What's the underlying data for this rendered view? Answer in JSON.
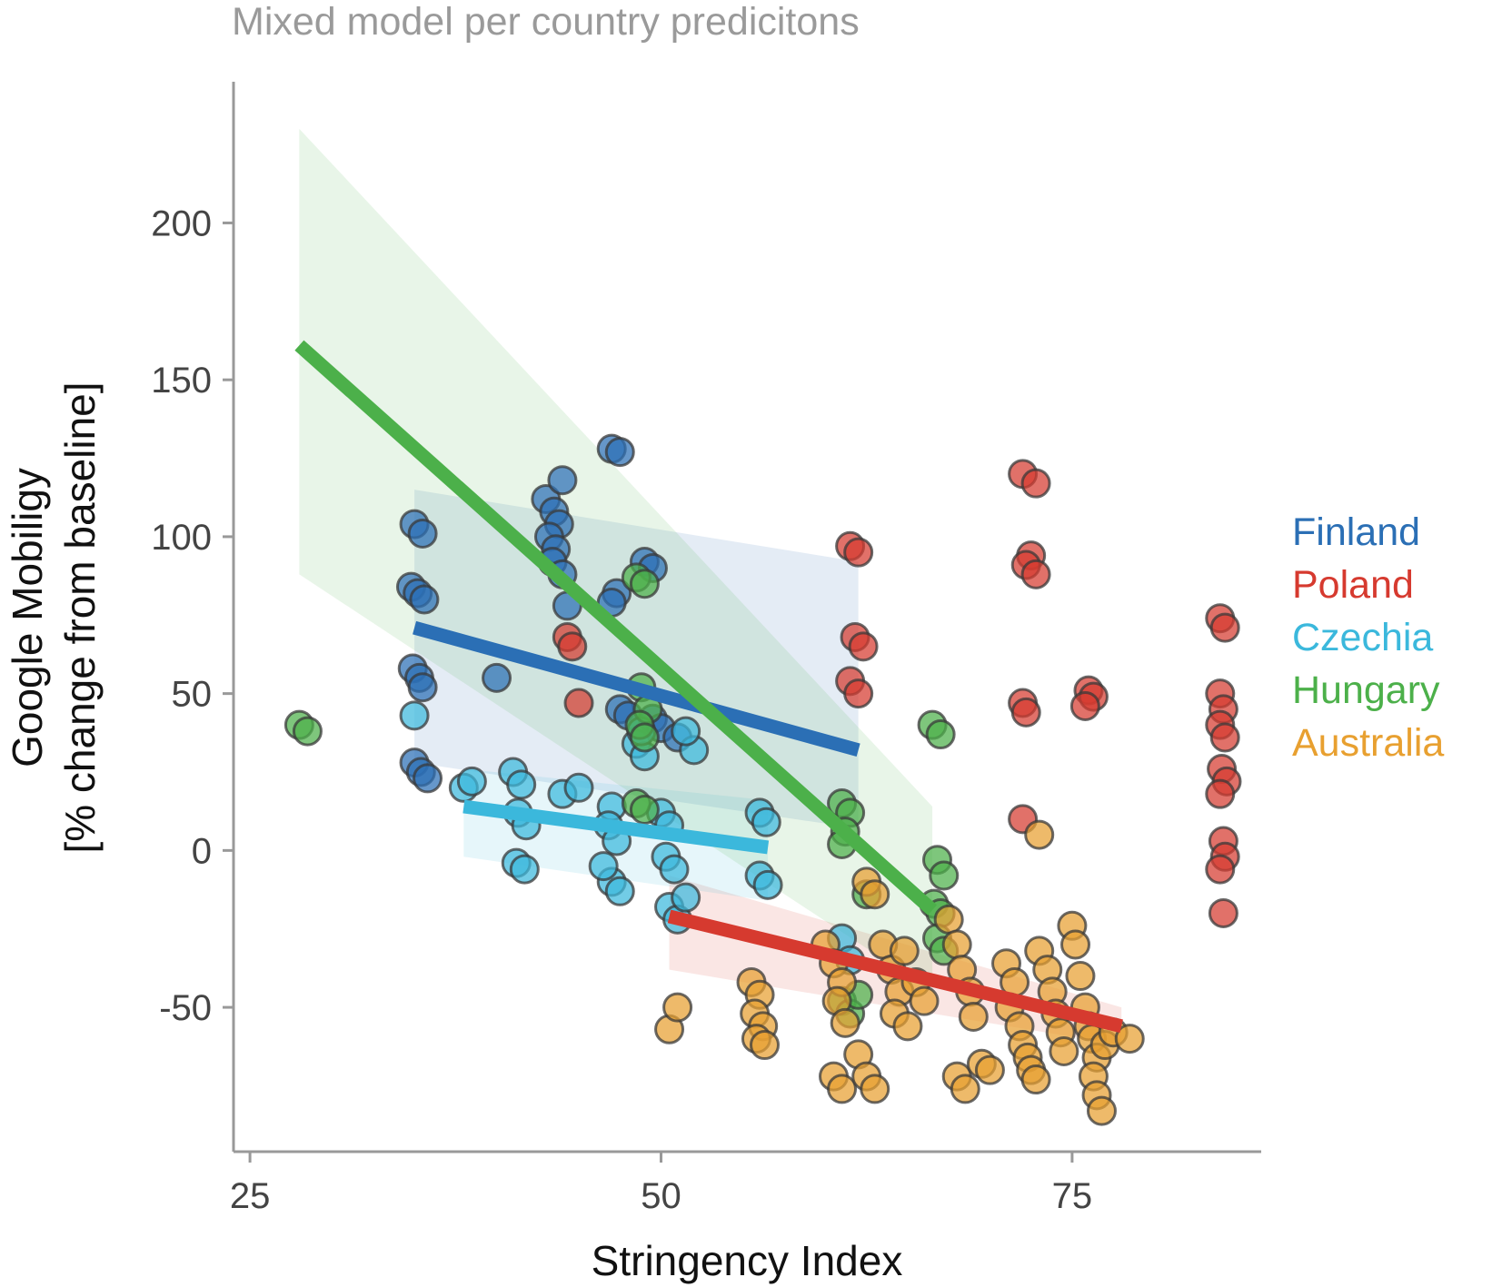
{
  "chart_data": {
    "type": "scatter",
    "title": "Mixed model per country predicitons",
    "xlabel": "Stringency Index",
    "ylabel_line1": "Google Mobiligy",
    "ylabel_line2": "[% change from baseline]",
    "xlim": [
      24,
      86.5
    ],
    "ylim": [
      -96,
      245
    ],
    "xticks": [
      25,
      50,
      75
    ],
    "xtick_labels": [
      "25",
      "50",
      "75"
    ],
    "yticks": [
      -50,
      0,
      50,
      100,
      150,
      200
    ],
    "ytick_labels": [
      "-50",
      "0",
      "50",
      "100",
      "150",
      "200"
    ],
    "grid": false,
    "legend_position": "right",
    "series": [
      {
        "name": "Finland",
        "color": "#2b6fb5",
        "fit_line": {
          "x": [
            35,
            62
          ],
          "y": [
            71,
            32
          ]
        },
        "band": {
          "x": [
            35,
            62
          ],
          "upper": [
            115,
            92
          ],
          "lower": [
            28,
            7
          ]
        },
        "points": [
          [
            35,
            104
          ],
          [
            35.5,
            101
          ],
          [
            34.8,
            84
          ],
          [
            35.2,
            82
          ],
          [
            35.6,
            80
          ],
          [
            34.9,
            58
          ],
          [
            35.3,
            55
          ],
          [
            35.5,
            52
          ],
          [
            35,
            28
          ],
          [
            35.4,
            25
          ],
          [
            35.8,
            23
          ],
          [
            43,
            112
          ],
          [
            43.5,
            108
          ],
          [
            43.8,
            104
          ],
          [
            43.2,
            100
          ],
          [
            43.6,
            96
          ],
          [
            43.4,
            92
          ],
          [
            44,
            88
          ],
          [
            44,
            118
          ],
          [
            44.3,
            78
          ],
          [
            40,
            55
          ],
          [
            47,
            128
          ],
          [
            47.5,
            127
          ],
          [
            47.3,
            82
          ],
          [
            47,
            79
          ],
          [
            49,
            92
          ],
          [
            49.5,
            90
          ],
          [
            47.5,
            45
          ],
          [
            48,
            43
          ],
          [
            49.5,
            42
          ],
          [
            50,
            39
          ],
          [
            51,
            36
          ]
        ]
      },
      {
        "name": "Poland",
        "color": "#d63a2f",
        "fit_line": {
          "x": [
            50.5,
            78
          ],
          "y": [
            -21,
            -56
          ]
        },
        "band": {
          "x": [
            50.5,
            78
          ],
          "upper": [
            -8,
            -50
          ],
          "lower": [
            -38,
            -62
          ]
        },
        "points": [
          [
            61.5,
            97
          ],
          [
            62,
            95
          ],
          [
            61.8,
            68
          ],
          [
            62.3,
            65
          ],
          [
            61.5,
            54
          ],
          [
            62,
            50
          ],
          [
            72,
            120
          ],
          [
            72.8,
            117
          ],
          [
            72.5,
            94
          ],
          [
            72.2,
            91
          ],
          [
            72.8,
            88
          ],
          [
            72,
            47
          ],
          [
            72.2,
            44
          ],
          [
            76,
            51
          ],
          [
            76.3,
            49
          ],
          [
            75.8,
            46
          ],
          [
            84,
            74
          ],
          [
            84.3,
            71
          ],
          [
            84,
            50
          ],
          [
            84.2,
            45
          ],
          [
            84,
            40
          ],
          [
            84.3,
            36
          ],
          [
            84.1,
            26
          ],
          [
            84.4,
            22
          ],
          [
            84,
            18
          ],
          [
            84.2,
            3
          ],
          [
            84.3,
            -2
          ],
          [
            84,
            -6
          ],
          [
            84.2,
            -20
          ],
          [
            72,
            10
          ],
          [
            44.3,
            68
          ],
          [
            44.6,
            65
          ],
          [
            45,
            47
          ]
        ]
      },
      {
        "name": "Czechia",
        "color": "#3bb8dc",
        "fit_line": {
          "x": [
            38,
            56.5
          ],
          "y": [
            14,
            1
          ]
        },
        "band": {
          "x": [
            38,
            56.5
          ],
          "upper": [
            26,
            16
          ],
          "lower": [
            -2,
            -16
          ]
        },
        "points": [
          [
            35,
            43
          ],
          [
            38,
            20
          ],
          [
            38.5,
            22
          ],
          [
            41,
            25
          ],
          [
            41.5,
            21
          ],
          [
            41.3,
            12
          ],
          [
            41.8,
            8
          ],
          [
            41.2,
            -4
          ],
          [
            41.7,
            -6
          ],
          [
            44,
            18
          ],
          [
            45,
            20
          ],
          [
            47,
            14
          ],
          [
            46.8,
            8
          ],
          [
            47.3,
            3
          ],
          [
            47,
            -10
          ],
          [
            47.5,
            -13
          ],
          [
            46.5,
            -5
          ],
          [
            48.5,
            34
          ],
          [
            49,
            30
          ],
          [
            48.8,
            38
          ],
          [
            50,
            12
          ],
          [
            50.5,
            8
          ],
          [
            50.3,
            -2
          ],
          [
            50.8,
            -6
          ],
          [
            50.5,
            -18
          ],
          [
            51,
            -22
          ],
          [
            51.5,
            -15
          ],
          [
            56,
            12
          ],
          [
            56.4,
            9
          ],
          [
            56,
            -8
          ],
          [
            56.5,
            -11
          ],
          [
            61,
            -28
          ],
          [
            61.5,
            -35
          ],
          [
            52,
            32
          ],
          [
            51.5,
            38
          ]
        ]
      },
      {
        "name": "Hungary",
        "color": "#4cb04a",
        "fit_line": {
          "x": [
            28,
            66.5
          ],
          "y": [
            161,
            -19
          ]
        },
        "band": {
          "x": [
            28,
            66.5
          ],
          "upper": [
            230,
            14
          ],
          "lower": [
            88,
            -45
          ]
        },
        "points": [
          [
            28,
            40
          ],
          [
            28.5,
            38
          ],
          [
            48.5,
            87
          ],
          [
            49,
            85
          ],
          [
            48.8,
            52
          ],
          [
            49.2,
            45
          ],
          [
            48.7,
            40
          ],
          [
            49,
            36
          ],
          [
            48.5,
            15
          ],
          [
            49,
            13
          ],
          [
            61,
            15
          ],
          [
            61.5,
            12
          ],
          [
            61.2,
            6
          ],
          [
            61,
            2
          ],
          [
            66.5,
            40
          ],
          [
            67,
            37
          ],
          [
            66.8,
            -3
          ],
          [
            67.2,
            -8
          ],
          [
            66.6,
            -17
          ],
          [
            67,
            -20
          ],
          [
            66.8,
            -28
          ],
          [
            67.2,
            -32
          ],
          [
            61,
            -48
          ],
          [
            61.5,
            -52
          ],
          [
            62,
            -46
          ],
          [
            62.5,
            -14
          ]
        ]
      },
      {
        "name": "Australia",
        "color": "#e8a030",
        "fit_line": null,
        "band": null,
        "points": [
          [
            50.5,
            -57
          ],
          [
            51,
            -50
          ],
          [
            55.5,
            -42
          ],
          [
            56,
            -46
          ],
          [
            55.7,
            -52
          ],
          [
            56.2,
            -56
          ],
          [
            55.8,
            -60
          ],
          [
            56.3,
            -62
          ],
          [
            60,
            -30
          ],
          [
            60.5,
            -36
          ],
          [
            61,
            -42
          ],
          [
            60.7,
            -48
          ],
          [
            61.2,
            -55
          ],
          [
            60.5,
            -72
          ],
          [
            61,
            -76
          ],
          [
            62,
            -65
          ],
          [
            62.5,
            -72
          ],
          [
            63,
            -76
          ],
          [
            63.5,
            -30
          ],
          [
            64,
            -38
          ],
          [
            64.5,
            -45
          ],
          [
            64.2,
            -52
          ],
          [
            65,
            -56
          ],
          [
            64.8,
            -32
          ],
          [
            65.5,
            -42
          ],
          [
            66,
            -48
          ],
          [
            62.5,
            -10
          ],
          [
            63,
            -14
          ],
          [
            67.5,
            -22
          ],
          [
            68,
            -30
          ],
          [
            68.3,
            -38
          ],
          [
            68.8,
            -45
          ],
          [
            69,
            -53
          ],
          [
            68,
            -72
          ],
          [
            68.5,
            -76
          ],
          [
            69.5,
            -68
          ],
          [
            70,
            -70
          ],
          [
            71,
            -36
          ],
          [
            71.5,
            -42
          ],
          [
            71.2,
            -50
          ],
          [
            71.8,
            -56
          ],
          [
            72,
            -62
          ],
          [
            72.3,
            -66
          ],
          [
            72.5,
            -70
          ],
          [
            72.8,
            -73
          ],
          [
            73,
            -32
          ],
          [
            73.5,
            -38
          ],
          [
            73.8,
            -45
          ],
          [
            74,
            -52
          ],
          [
            74.3,
            -58
          ],
          [
            74.5,
            -64
          ],
          [
            75,
            -24
          ],
          [
            75.2,
            -30
          ],
          [
            75.5,
            -40
          ],
          [
            75.8,
            -50
          ],
          [
            76,
            -56
          ],
          [
            76.2,
            -60
          ],
          [
            76.5,
            -66
          ],
          [
            76.3,
            -72
          ],
          [
            76.5,
            -78
          ],
          [
            76.8,
            -83
          ],
          [
            77,
            -62
          ],
          [
            77.5,
            -58
          ],
          [
            78.5,
            -60
          ],
          [
            73,
            5
          ]
        ]
      }
    ]
  }
}
